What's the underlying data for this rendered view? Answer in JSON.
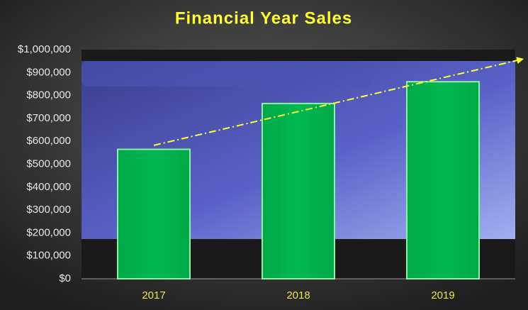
{
  "chart_data": {
    "type": "bar",
    "title": "Financial Year Sales",
    "categories": [
      "2017",
      "2018",
      "2019"
    ],
    "values": [
      565000,
      765000,
      860000
    ],
    "color": "#00b050",
    "ylim": [
      0,
      1000000
    ],
    "yticks": [
      {
        "value": 0,
        "label": "$0"
      },
      {
        "value": 100000,
        "label": "$100,000"
      },
      {
        "value": 200000,
        "label": "$200,000"
      },
      {
        "value": 300000,
        "label": "$300,000"
      },
      {
        "value": 400000,
        "label": "$400,000"
      },
      {
        "value": 500000,
        "label": "$500,000"
      },
      {
        "value": 600000,
        "label": "$600,000"
      },
      {
        "value": 700000,
        "label": "$700,000"
      },
      {
        "value": 800000,
        "label": "$800,000"
      },
      {
        "value": 900000,
        "label": "$900,000"
      },
      {
        "value": 1000000,
        "label": "$1,000,000"
      }
    ],
    "grid": false,
    "trendline": true,
    "trendline_color": "#ffff33"
  }
}
